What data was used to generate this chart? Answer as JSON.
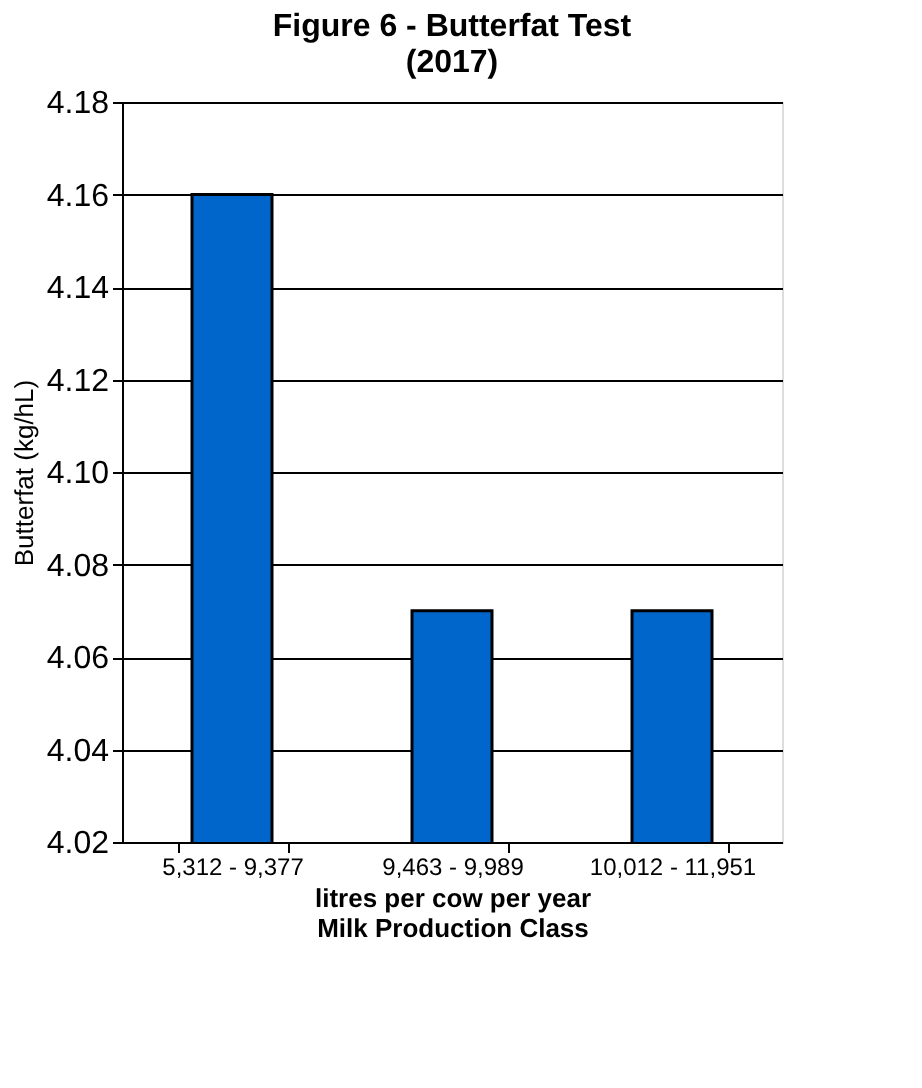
{
  "chart_data": {
    "type": "bar",
    "title": "Figure 6 - Butterfat Test\n(2017)",
    "xlabel": "litres per cow per year\nMilk Production Class",
    "ylabel": "Butterfat (kg/hL)",
    "categories": [
      "5,312  - 9,377",
      "9,463 - 9,989",
      "10,012 - 11,951"
    ],
    "values": [
      4.16,
      4.07,
      4.07
    ],
    "color": "#0066cc",
    "ylim": [
      4.02,
      4.18
    ],
    "yticks": [
      4.02,
      4.04,
      4.06,
      4.08,
      {
        "value": 4.1,
        "label": "4.10"
      },
      4.12,
      4.14,
      4.16,
      4.18
    ],
    "grid": "y"
  }
}
